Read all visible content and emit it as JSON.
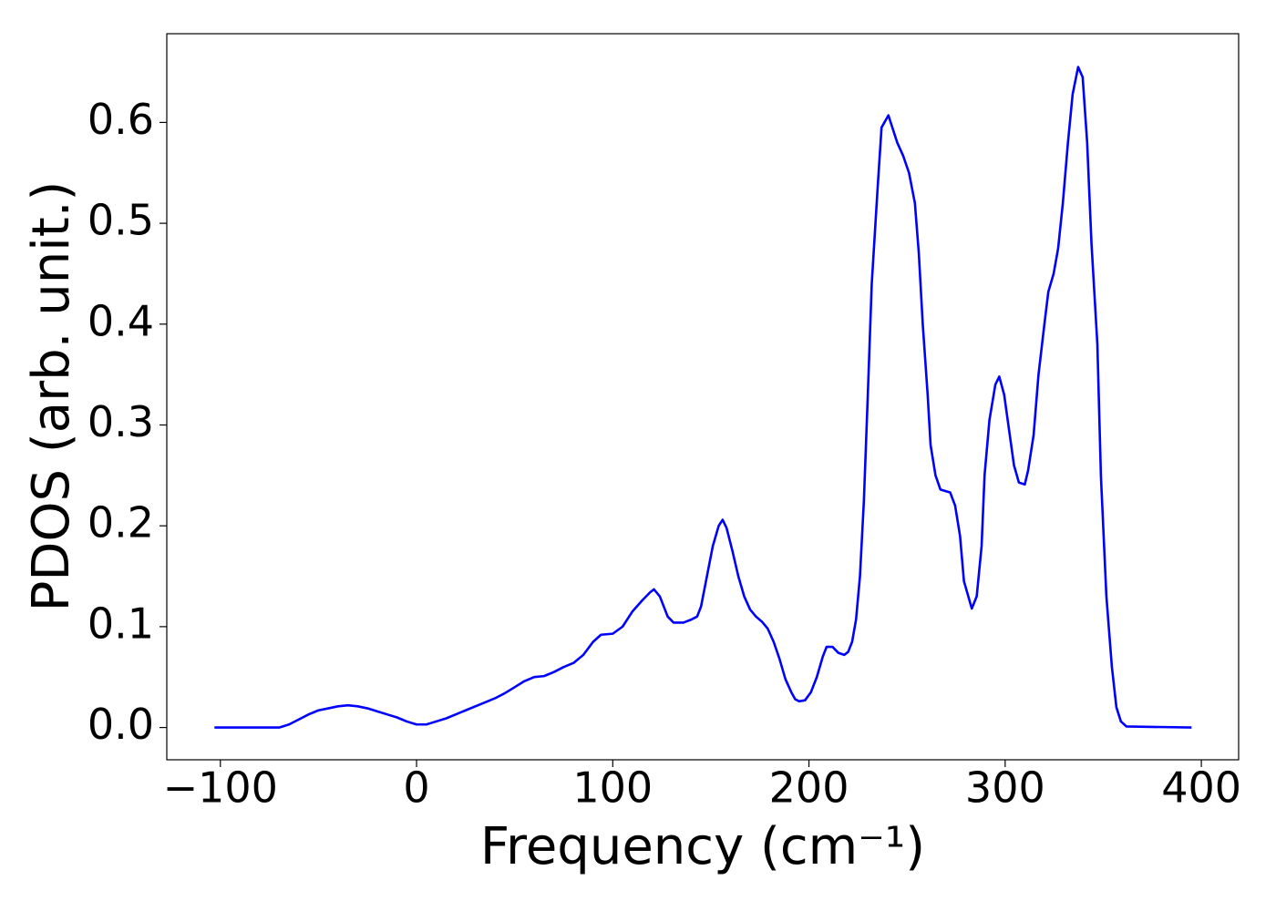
{
  "chart_data": {
    "type": "line",
    "xlabel": "Frequency (cm⁻¹)",
    "ylabel": "PDOS (arb. unit.)",
    "color": "#0000ff",
    "x": [
      -103,
      -70,
      -65,
      -60,
      -55,
      -50,
      -45,
      -40,
      -35,
      -30,
      -25,
      -20,
      -15,
      -10,
      -5,
      0,
      5,
      10,
      15,
      20,
      25,
      30,
      35,
      40,
      45,
      50,
      55,
      60,
      65,
      70,
      75,
      80,
      85,
      90,
      94,
      100,
      105,
      110,
      115,
      119,
      121,
      124,
      128,
      131,
      136,
      140,
      143,
      145,
      148,
      151,
      154,
      156,
      158,
      161,
      164,
      167,
      170,
      173,
      176,
      179,
      182,
      185,
      188,
      191,
      193,
      195,
      198,
      201,
      204,
      207,
      209,
      212,
      215,
      218,
      220,
      222,
      224,
      226,
      228,
      230,
      232,
      235,
      237,
      240.5,
      242,
      245,
      248,
      251,
      254,
      256,
      258,
      260.5,
      262,
      264.5,
      267,
      272,
      274.5,
      277,
      279,
      283,
      285.5,
      288,
      289.5,
      292,
      295,
      297,
      299.5,
      302,
      304.5,
      307,
      310,
      311.7,
      314.5,
      317,
      320,
      322,
      324.7,
      327,
      329.4,
      332,
      334.4,
      337.2,
      339.5,
      341.8,
      344,
      347,
      348.8,
      351.6,
      354.4,
      356.7,
      359,
      361.8,
      395
    ],
    "values": [
      0,
      0,
      0.003,
      0.008,
      0.013,
      0.017,
      0.019,
      0.021,
      0.022,
      0.021,
      0.019,
      0.016,
      0.013,
      0.01,
      0.006,
      0.003,
      0.003,
      0.006,
      0.009,
      0.013,
      0.017,
      0.021,
      0.025,
      0.029,
      0.034,
      0.04,
      0.046,
      0.05,
      0.051,
      0.055,
      0.06,
      0.064,
      0.072,
      0.085,
      0.092,
      0.093,
      0.1,
      0.115,
      0.126,
      0.134,
      0.137,
      0.13,
      0.11,
      0.104,
      0.104,
      0.107,
      0.11,
      0.12,
      0.15,
      0.18,
      0.2,
      0.206,
      0.198,
      0.175,
      0.15,
      0.13,
      0.117,
      0.11,
      0.105,
      0.098,
      0.085,
      0.068,
      0.048,
      0.035,
      0.028,
      0.026,
      0.027,
      0.035,
      0.05,
      0.07,
      0.08,
      0.08,
      0.074,
      0.072,
      0.075,
      0.085,
      0.107,
      0.15,
      0.225,
      0.33,
      0.44,
      0.535,
      0.595,
      0.607,
      0.598,
      0.58,
      0.567,
      0.55,
      0.52,
      0.47,
      0.4,
      0.33,
      0.28,
      0.25,
      0.236,
      0.233,
      0.22,
      0.19,
      0.145,
      0.118,
      0.13,
      0.18,
      0.25,
      0.305,
      0.34,
      0.348,
      0.33,
      0.295,
      0.26,
      0.243,
      0.241,
      0.255,
      0.29,
      0.35,
      0.4,
      0.432,
      0.45,
      0.475,
      0.52,
      0.58,
      0.628,
      0.655,
      0.645,
      0.58,
      0.48,
      0.38,
      0.25,
      0.13,
      0.06,
      0.02,
      0.006,
      0.001,
      0
    ],
    "xlim": [
      -127.3,
      419
    ],
    "ylim": [
      -0.032,
      0.688
    ],
    "xticks": [
      {
        "value": -100,
        "label": "−100"
      },
      0,
      100,
      200,
      300,
      400
    ],
    "yticks": [
      {
        "value": 0,
        "label": "0.0"
      },
      0.1,
      0.2,
      0.3,
      0.4,
      0.5,
      0.6
    ]
  }
}
